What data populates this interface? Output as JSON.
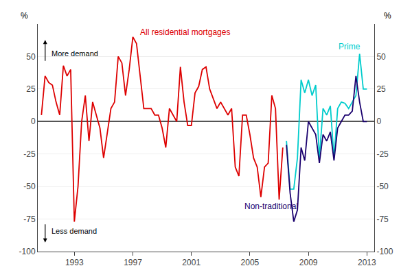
{
  "chart_data": {
    "type": "line",
    "ylabel": "%",
    "y2label": "%",
    "xlim": [
      1990.5,
      2013.5
    ],
    "xticks": [
      1993,
      1997,
      2001,
      2005,
      2009,
      2013
    ],
    "ylim": [
      -100,
      75
    ],
    "yticks": [
      -100,
      -75,
      -50,
      -25,
      0,
      25,
      50
    ],
    "y2lim": [
      -100,
      75
    ],
    "y2ticks": [
      -100,
      -75,
      -50,
      -25,
      0,
      25,
      50
    ],
    "grid": true,
    "annotations": [
      "More demand",
      "Less demand"
    ],
    "series": [
      {
        "name": "All residential mortgages",
        "color": "#dd0000",
        "x": [
          1990.75,
          1991.0,
          1991.25,
          1991.5,
          1991.75,
          1992.0,
          1992.25,
          1992.5,
          1992.75,
          1993.0,
          1993.25,
          1993.5,
          1993.75,
          1994.0,
          1994.25,
          1994.5,
          1994.75,
          1995.0,
          1995.25,
          1995.5,
          1995.75,
          1996.0,
          1996.25,
          1996.5,
          1996.75,
          1997.0,
          1997.25,
          1997.5,
          1997.75,
          1998.0,
          1998.25,
          1998.5,
          1998.75,
          1999.0,
          1999.25,
          1999.5,
          1999.75,
          2000.0,
          2000.25,
          2000.5,
          2000.75,
          2001.0,
          2001.25,
          2001.5,
          2001.75,
          2002.0,
          2002.25,
          2002.5,
          2002.75,
          2003.0,
          2003.25,
          2003.5,
          2003.75,
          2004.0,
          2004.25,
          2004.5,
          2004.75,
          2005.0,
          2005.25,
          2005.5,
          2005.75,
          2006.0,
          2006.25,
          2006.5,
          2006.75,
          2007.0,
          2007.25
        ],
        "values": [
          5,
          35,
          30,
          28,
          15,
          5,
          43,
          35,
          40,
          -77,
          -50,
          0,
          20,
          -15,
          15,
          5,
          -5,
          -28,
          -10,
          10,
          15,
          50,
          45,
          20,
          40,
          65,
          60,
          35,
          10,
          10,
          10,
          5,
          5,
          -5,
          -20,
          10,
          5,
          0,
          42,
          15,
          -3,
          -3,
          22,
          27,
          40,
          42,
          25,
          18,
          10,
          15,
          10,
          5,
          10,
          -35,
          -42,
          5,
          5,
          -10,
          -28,
          -35,
          -58,
          -35,
          -32,
          20,
          10,
          -60,
          -20
        ]
      },
      {
        "name": "Prime",
        "color": "#00cccc",
        "x": [
          2007.5,
          2007.75,
          2008.0,
          2008.25,
          2008.5,
          2008.75,
          2009.0,
          2009.25,
          2009.5,
          2009.75,
          2010.0,
          2010.25,
          2010.5,
          2010.75,
          2011.0,
          2011.25,
          2011.5,
          2011.75,
          2012.0,
          2012.25,
          2012.5,
          2012.75,
          2013.0
        ],
        "values": [
          -15,
          -52,
          -52,
          -28,
          32,
          22,
          32,
          20,
          28,
          -28,
          10,
          5,
          12,
          -28,
          10,
          15,
          14,
          10,
          15,
          20,
          52,
          25,
          25
        ]
      },
      {
        "name": "Non-traditional",
        "color": "#1a006e",
        "x": [
          2007.5,
          2007.75,
          2008.0,
          2008.25,
          2008.5,
          2008.75,
          2009.0,
          2009.25,
          2009.5,
          2009.75,
          2010.0,
          2010.25,
          2010.5,
          2010.75,
          2011.0,
          2011.25,
          2011.5,
          2011.75,
          2012.0,
          2012.25,
          2012.5,
          2012.75,
          2013.0
        ],
        "values": [
          -18,
          -55,
          -77,
          -68,
          -20,
          -30,
          0,
          -5,
          -10,
          -32,
          -10,
          -15,
          -8,
          -30,
          -5,
          0,
          5,
          5,
          8,
          35,
          15,
          0,
          0
        ]
      }
    ]
  }
}
